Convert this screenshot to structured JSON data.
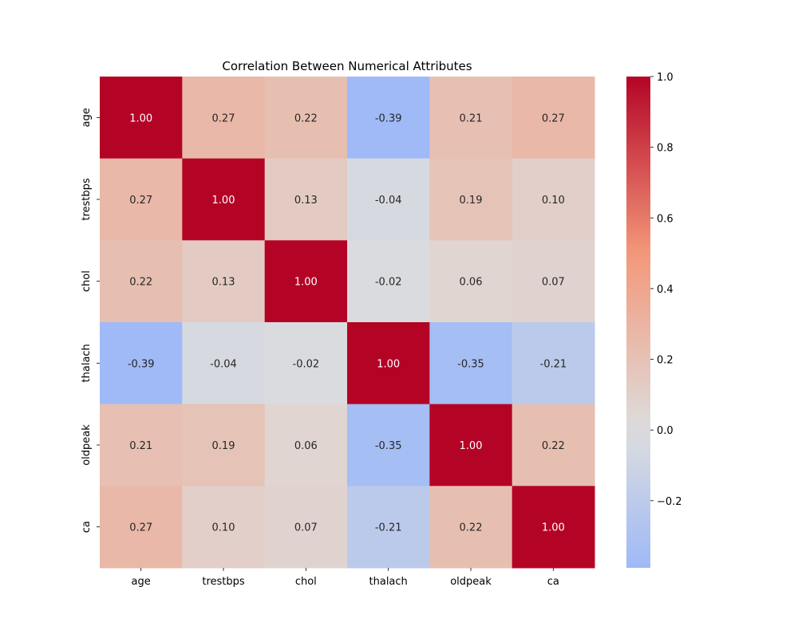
{
  "chart_data": {
    "type": "heatmap",
    "title": "Correlation Between Numerical Attributes",
    "xlabel": "",
    "ylabel": "",
    "x_categories": [
      "age",
      "trestbps",
      "chol",
      "thalach",
      "oldpeak",
      "ca"
    ],
    "y_categories": [
      "age",
      "trestbps",
      "chol",
      "thalach",
      "oldpeak",
      "ca"
    ],
    "values": [
      [
        1.0,
        0.27,
        0.22,
        -0.39,
        0.21,
        0.27
      ],
      [
        0.27,
        1.0,
        0.13,
        -0.04,
        0.19,
        0.1
      ],
      [
        0.22,
        0.13,
        1.0,
        -0.02,
        0.06,
        0.07
      ],
      [
        -0.39,
        -0.04,
        -0.02,
        1.0,
        -0.35,
        -0.21
      ],
      [
        0.21,
        0.19,
        0.06,
        -0.35,
        1.0,
        0.22
      ],
      [
        0.27,
        0.1,
        0.07,
        -0.21,
        0.22,
        1.0
      ]
    ],
    "annotation_format": "0.00",
    "colormap": "coolwarm",
    "color_range": [
      -0.39,
      1.0
    ],
    "colorbar": {
      "ticks": [
        1.0,
        0.8,
        0.6,
        0.4,
        0.2,
        0.0,
        -0.2
      ],
      "tick_labels": [
        "1.0",
        "0.8",
        "0.6",
        "0.4",
        "0.2",
        "0.0",
        "−0.2"
      ],
      "placement": "right"
    },
    "grid": false
  }
}
